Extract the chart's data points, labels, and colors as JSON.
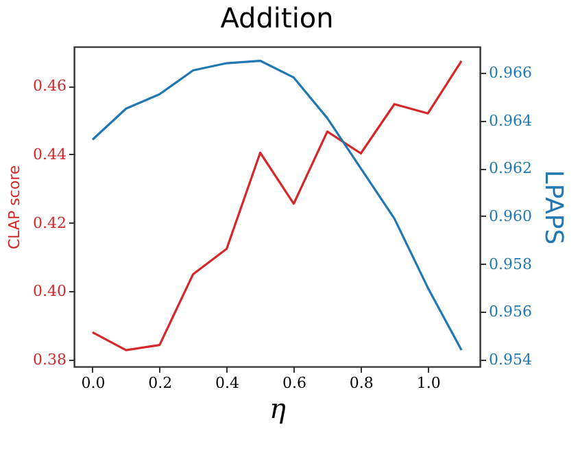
{
  "chart_data": {
    "type": "line",
    "title": "Addition",
    "xlabel": "η",
    "ylabel": "CLAP score",
    "y2label": "LPAPS",
    "x": [
      0,
      0.1,
      0.2,
      0.3,
      0.4,
      0.5,
      0.6,
      0.7,
      0.8,
      0.9,
      1.0,
      1.1
    ],
    "series": [
      {
        "color": "#d62728",
        "values": [
          0.388,
          0.3828,
          0.3843,
          0.405,
          0.4124,
          0.4405,
          0.4256,
          0.4467,
          0.4403,
          0.4547,
          0.452,
          0.4673
        ]
      },
      {
        "color": "#1f77b4",
        "axis": "y2",
        "values": [
          0.9632,
          0.9645,
          0.9651,
          0.9661,
          0.9664,
          0.9665,
          0.9658,
          0.9641,
          0.962,
          0.9599,
          0.957,
          0.9544
        ]
      }
    ],
    "xlim": [
      -0.055,
      1.155
    ],
    "xticks": [
      {
        "value": 0,
        "label": "0.0"
      },
      {
        "value": 0.2,
        "label": "0.2"
      },
      {
        "value": 0.4,
        "label": "0.4"
      },
      {
        "value": 0.6,
        "label": "0.6"
      },
      {
        "value": 0.8,
        "label": "0.8"
      },
      {
        "value": 1.0,
        "label": "1.0"
      }
    ],
    "ylim": [
      0.378,
      0.4715
    ],
    "yticks": [
      0.38,
      {
        "value": 0.4,
        "label": "0.40"
      },
      0.42,
      0.44,
      0.46
    ],
    "y2lim": [
      0.95371,
      0.96709
    ],
    "y2ticks": [
      0.954,
      0.956,
      0.958,
      {
        "value": 0.96,
        "label": "0.960"
      },
      0.962,
      0.964,
      0.966
    ],
    "grid": false,
    "marker": "none",
    "line_style": "solid"
  }
}
